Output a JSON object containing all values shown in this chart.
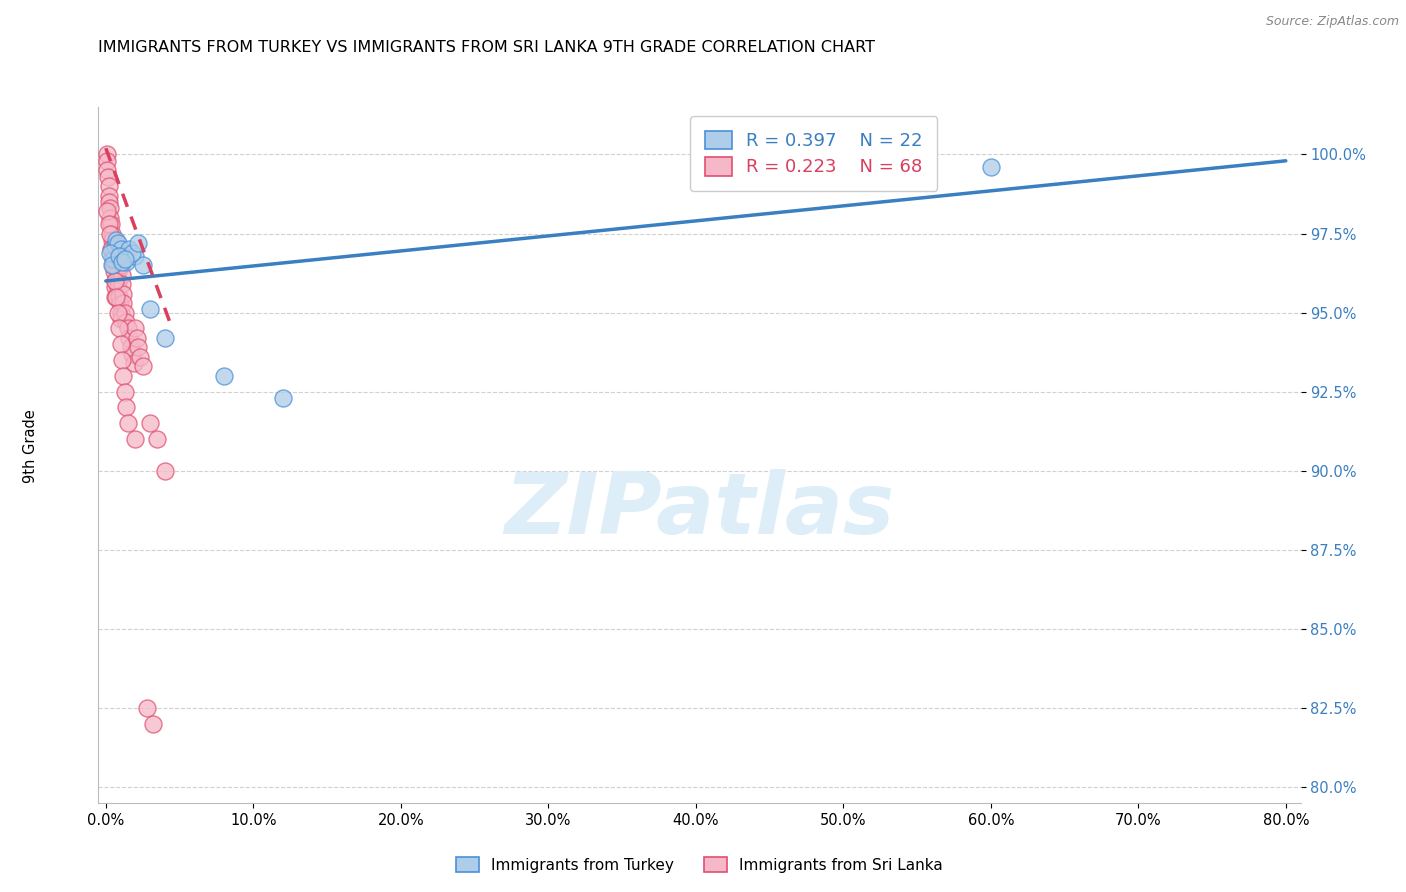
{
  "title": "IMMIGRANTS FROM TURKEY VS IMMIGRANTS FROM SRI LANKA 9TH GRADE CORRELATION CHART",
  "source": "Source: ZipAtlas.com",
  "ylabel": "9th Grade",
  "legend_label_turkey": "Immigrants from Turkey",
  "legend_label_srilanka": "Immigrants from Sri Lanka",
  "R_turkey": 0.397,
  "N_turkey": 22,
  "R_srilanka": 0.223,
  "N_srilanka": 68,
  "xlim": [
    -0.5,
    81.0
  ],
  "ylim": [
    79.5,
    101.5
  ],
  "xtick_vals": [
    0.0,
    10.0,
    20.0,
    30.0,
    40.0,
    50.0,
    60.0,
    70.0,
    80.0
  ],
  "ytick_vals": [
    80.0,
    82.5,
    85.0,
    87.5,
    90.0,
    92.5,
    95.0,
    97.5,
    100.0
  ],
  "color_turkey_face": "#aecde8",
  "color_turkey_edge": "#4a90d9",
  "color_srilanka_face": "#f5b8c8",
  "color_srilanka_edge": "#e05070",
  "trend_turkey_color": "#3a7fc1",
  "trend_srilanka_color": "#d94060",
  "watermark_text": "ZIPatlas",
  "watermark_color": "#ddeef8",
  "turkey_scatter_x": [
    0.5,
    0.6,
    0.7,
    0.8,
    1.0,
    1.2,
    1.4,
    1.6,
    2.0,
    2.5,
    3.0,
    4.0,
    8.0,
    12.0,
    60.0,
    0.3,
    0.4,
    1.8,
    2.2,
    0.9,
    1.1,
    1.3
  ],
  "turkey_scatter_y": [
    96.7,
    97.1,
    97.3,
    97.2,
    97.0,
    96.8,
    96.6,
    97.0,
    96.8,
    96.5,
    95.1,
    94.2,
    93.0,
    92.3,
    99.6,
    96.9,
    96.5,
    96.9,
    97.2,
    96.8,
    96.6,
    96.7
  ],
  "srilanka_scatter_x": [
    0.05,
    0.1,
    0.1,
    0.15,
    0.2,
    0.2,
    0.25,
    0.3,
    0.3,
    0.35,
    0.4,
    0.4,
    0.45,
    0.5,
    0.5,
    0.55,
    0.6,
    0.6,
    0.65,
    0.7,
    0.7,
    0.75,
    0.8,
    0.8,
    0.85,
    0.9,
    0.95,
    1.0,
    1.0,
    1.05,
    1.1,
    1.1,
    1.15,
    1.2,
    1.3,
    1.4,
    1.5,
    1.6,
    1.7,
    1.8,
    1.9,
    2.0,
    2.1,
    2.2,
    2.3,
    2.5,
    3.0,
    3.5,
    4.0,
    0.1,
    0.2,
    0.3,
    0.4,
    0.5,
    0.6,
    0.7,
    0.8,
    0.9,
    1.0,
    1.1,
    1.2,
    1.3,
    1.4,
    1.5,
    2.0,
    2.8,
    3.2,
    0.35
  ],
  "srilanka_scatter_y": [
    100.0,
    99.8,
    99.5,
    99.3,
    99.0,
    98.7,
    98.5,
    98.3,
    98.0,
    97.8,
    97.5,
    97.3,
    97.0,
    96.8,
    96.5,
    96.3,
    96.0,
    95.8,
    95.5,
    97.2,
    96.8,
    96.5,
    96.3,
    96.0,
    95.8,
    95.5,
    95.3,
    95.0,
    94.8,
    96.5,
    96.2,
    95.9,
    95.6,
    95.3,
    95.0,
    94.7,
    94.5,
    94.2,
    93.9,
    93.7,
    93.4,
    94.5,
    94.2,
    93.9,
    93.6,
    93.3,
    91.5,
    91.0,
    90.0,
    98.2,
    97.8,
    97.5,
    97.0,
    96.5,
    96.0,
    95.5,
    95.0,
    94.5,
    94.0,
    93.5,
    93.0,
    92.5,
    92.0,
    91.5,
    91.0,
    82.5,
    82.0,
    97.0
  ],
  "turkey_trend_x0": 0.0,
  "turkey_trend_y0": 96.0,
  "turkey_trend_x1": 80.0,
  "turkey_trend_y1": 99.8,
  "srilanka_trend_x0": 0.0,
  "srilanka_trend_y0": 100.2,
  "srilanka_trend_x1": 4.5,
  "srilanka_trend_y1": 94.5
}
